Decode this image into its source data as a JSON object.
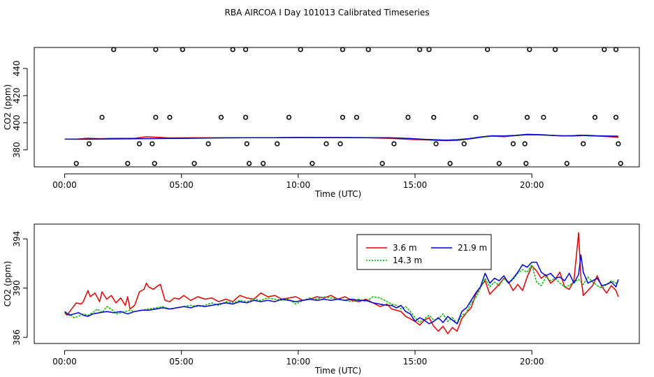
{
  "title": "RBA AIRCOA I  Day 101013  Calibrated Timeseries",
  "chart_data": [
    {
      "type": "line",
      "xlabel": "Time (UTC)",
      "ylabel": "CO2 (ppm)",
      "xlim": [
        -1.3,
        24.6
      ],
      "ylim": [
        367.5,
        455.5
      ],
      "x_ticks": [
        0,
        5,
        10,
        15,
        20
      ],
      "x_tick_labels": [
        "00:00",
        "05:00",
        "10:00",
        "15:00",
        "20:00"
      ],
      "y_ticks": [
        380,
        400,
        420,
        440
      ],
      "y_tick_labels": [
        "380",
        "400",
        "420",
        "440"
      ],
      "colors": {
        "3.6 m": "#e00000",
        "14.3 m": "#00bb00",
        "21.9 m": "#0000d0"
      },
      "series": [
        {
          "name": "3.6 m",
          "color": "#e00000",
          "x": [
            0,
            0.5,
            1,
            1.5,
            2,
            3,
            3.5,
            4,
            4.5,
            5,
            6,
            7,
            8,
            9,
            10,
            11,
            12,
            13,
            14,
            14.8,
            15.3,
            15.8,
            16.3,
            16.8,
            17.3,
            17.8,
            18.2,
            18.8,
            19.3,
            19.8,
            20.3,
            20.8,
            21.3,
            21.8,
            22.1,
            22.5,
            23,
            23.7
          ],
          "y": [
            388,
            388,
            388.6,
            388.3,
            388.5,
            388.6,
            389.7,
            389.3,
            388.8,
            388.9,
            388.9,
            388.9,
            389,
            389,
            389.2,
            389,
            389,
            388.9,
            388.5,
            387.7,
            387.5,
            387.1,
            386.8,
            387,
            388,
            389.2,
            390.2,
            389.8,
            390.5,
            391.1,
            391,
            390.7,
            390.3,
            390.5,
            390.9,
            390.3,
            390.1,
            389.3
          ]
        },
        {
          "name": "14.3 m",
          "color": "#00bb00",
          "x": [
            0,
            0.5,
            1,
            2,
            3,
            4,
            5,
            6,
            7,
            8,
            9,
            10,
            11,
            12,
            13,
            14,
            14.8,
            15.3,
            15.8,
            16.3,
            16.8,
            17.3,
            17.8,
            18.3,
            18.8,
            19.3,
            19.8,
            20.3,
            20.8,
            21.3,
            21.8,
            22.3,
            22.8,
            23.3,
            23.7
          ],
          "y": [
            388,
            387.9,
            388,
            388.1,
            388.2,
            388.4,
            388.5,
            388.7,
            388.9,
            389,
            389,
            389.1,
            389.1,
            389.1,
            389,
            388.9,
            388.3,
            387.8,
            387.4,
            387,
            387.2,
            388,
            389.2,
            390.1,
            390.1,
            390.5,
            391.3,
            391.1,
            390.7,
            390.3,
            390.2,
            390.5,
            390.3,
            390.2,
            390.1
          ]
        },
        {
          "name": "21.9 m",
          "color": "#0000d0",
          "x": [
            0,
            0.5,
            1,
            2,
            3,
            4,
            5,
            6,
            7,
            8,
            9,
            10,
            11,
            12,
            13,
            14,
            14.8,
            15.3,
            15.8,
            16.3,
            16.8,
            17.3,
            17.8,
            18.3,
            18.8,
            19.3,
            19.8,
            20.3,
            20.8,
            21.3,
            21.8,
            22.3,
            22.8,
            23.3,
            23.7
          ],
          "y": [
            388,
            387.9,
            387.9,
            388.1,
            388.2,
            388.4,
            388.5,
            388.7,
            388.9,
            389,
            389,
            389.1,
            389.1,
            389.1,
            389,
            388.9,
            388.4,
            387.9,
            387.5,
            387.2,
            387.5,
            388.3,
            389.5,
            390.4,
            390.3,
            390.7,
            391.5,
            391.3,
            390.8,
            390.4,
            390.4,
            390.8,
            390.4,
            390.2,
            390.1
          ]
        }
      ],
      "flag_points": {
        "x": [
          0.5,
          1.05,
          1.6,
          2.1,
          2.7,
          3.2,
          3.75,
          3.85,
          3.9,
          3.9,
          4.5,
          5.05,
          5.55,
          6.15,
          6.7,
          7.2,
          7.75,
          7.75,
          7.8,
          7.9,
          8.5,
          9.1,
          9.6,
          10.1,
          10.6,
          11.2,
          11.8,
          11.9,
          11.9,
          12.5,
          13.0,
          13.6,
          14.1,
          14.7,
          15.2,
          15.6,
          15.8,
          15.9,
          16.5,
          17.1,
          17.6,
          18.1,
          18.6,
          19.2,
          19.7,
          19.75,
          19.8,
          19.9,
          20.5,
          21.0,
          21.5,
          22.2,
          22.7,
          23.1,
          23.6,
          23.6,
          23.7,
          23.8
        ],
        "y": [
          370,
          384.5,
          404,
          454,
          370,
          384.5,
          384.5,
          370,
          404,
          454,
          404,
          454,
          370,
          384.5,
          404,
          454,
          404,
          454,
          384.5,
          370,
          370,
          384.5,
          404,
          454,
          370,
          384.5,
          384.5,
          404,
          454,
          404,
          454,
          370,
          384.5,
          404,
          454,
          454,
          404,
          384.5,
          370,
          384.5,
          404,
          454,
          370,
          384.5,
          384.5,
          370,
          404,
          454,
          404,
          454,
          370,
          384.5,
          404,
          454,
          454,
          404,
          384.5,
          370
        ]
      }
    },
    {
      "type": "line",
      "xlabel": "Time (UTC)",
      "ylabel": "CO2 (ppm)",
      "xlim": [
        -1.3,
        24.6
      ],
      "ylim": [
        385.5,
        395.2
      ],
      "x_ticks": [
        0,
        5,
        10,
        15,
        20
      ],
      "x_tick_labels": [
        "00:00",
        "05:00",
        "10:00",
        "15:00",
        "20:00"
      ],
      "y_ticks": [
        386,
        390,
        394
      ],
      "y_tick_labels": [
        "386",
        "390",
        "394"
      ],
      "legend": {
        "position": "top-center",
        "entries": [
          "3.6 m",
          "14.3 m",
          "21.9 m"
        ]
      },
      "series": [
        {
          "name": "3.6 m",
          "color": "#e00000",
          "x": [
            0,
            0.1,
            0.3,
            0.5,
            0.7,
            0.8,
            1.0,
            1.1,
            1.3,
            1.5,
            1.6,
            1.8,
            2.0,
            2.2,
            2.4,
            2.6,
            2.7,
            2.8,
            3.0,
            3.2,
            3.4,
            3.5,
            3.6,
            3.8,
            4.0,
            4.1,
            4.3,
            4.5,
            4.7,
            4.9,
            5.1,
            5.4,
            5.7,
            6.0,
            6.3,
            6.6,
            6.9,
            7.2,
            7.5,
            7.8,
            8.1,
            8.4,
            8.7,
            9.0,
            9.3,
            9.6,
            9.9,
            10.2,
            10.5,
            10.8,
            11.1,
            11.4,
            11.7,
            12.0,
            12.3,
            12.6,
            12.9,
            13.2,
            13.5,
            13.8,
            14.0,
            14.2,
            14.4,
            14.6,
            14.8,
            15.0,
            15.2,
            15.4,
            15.6,
            15.8,
            16.0,
            16.2,
            16.4,
            16.6,
            16.8,
            17.0,
            17.2,
            17.4,
            17.6,
            17.8,
            18.0,
            18.2,
            18.4,
            18.6,
            18.8,
            19.0,
            19.2,
            19.4,
            19.6,
            19.8,
            20.0,
            20.2,
            20.4,
            20.6,
            20.8,
            21.0,
            21.2,
            21.4,
            21.6,
            21.8,
            21.9,
            22.0,
            22.1,
            22.2,
            22.4,
            22.6,
            22.8,
            23.0,
            23.2,
            23.4,
            23.6,
            23.7
          ],
          "y": [
            388,
            387.8,
            388.3,
            388.8,
            388.7,
            388.9,
            389.8,
            389.3,
            389.6,
            388.9,
            389.7,
            389.1,
            389.4,
            388.8,
            389.2,
            388.6,
            389.3,
            388.3,
            388.6,
            389.7,
            389.9,
            390.4,
            390.1,
            389.9,
            390.2,
            390.3,
            389,
            388.9,
            389.2,
            389.1,
            389.4,
            389,
            389.3,
            389.1,
            389.2,
            388.9,
            389.1,
            388.9,
            389.4,
            389.2,
            389.1,
            389.6,
            389.3,
            389.4,
            389.1,
            389.2,
            389.3,
            389,
            389.1,
            389.3,
            389.2,
            389.4,
            389.1,
            389.3,
            389,
            388.9,
            389.1,
            388.8,
            388.5,
            388.7,
            388.3,
            388.2,
            388.1,
            387.7,
            387.5,
            387.3,
            387.0,
            387.4,
            387.6,
            386.9,
            386.5,
            386.9,
            386.3,
            386.8,
            386.5,
            387.5,
            388,
            388.4,
            389.5,
            390.1,
            390.6,
            389.5,
            389.9,
            390.3,
            390.8,
            390.5,
            389.8,
            390.3,
            389.8,
            390.9,
            391.8,
            391.4,
            390.8,
            391.1,
            390.4,
            390.7,
            391.3,
            390.1,
            389.9,
            390.6,
            392.5,
            394.5,
            390.9,
            389.4,
            389.8,
            390.2,
            391,
            390.1,
            389.6,
            390.2,
            389.8,
            389.3
          ]
        },
        {
          "name": "14.3 m",
          "color": "#00bb00",
          "x": [
            0,
            0.2,
            0.4,
            0.6,
            0.8,
            1.0,
            1.2,
            1.4,
            1.6,
            1.8,
            2.0,
            2.2,
            2.4,
            2.6,
            2.8,
            3.0,
            3.3,
            3.6,
            3.9,
            4.2,
            4.5,
            4.8,
            5.1,
            5.4,
            5.7,
            6.0,
            6.3,
            6.6,
            6.9,
            7.2,
            7.5,
            7.8,
            8.1,
            8.4,
            8.7,
            9.0,
            9.3,
            9.6,
            9.9,
            10.2,
            10.5,
            10.8,
            11.1,
            11.4,
            11.7,
            12.0,
            12.3,
            12.6,
            12.9,
            13.2,
            13.5,
            13.8,
            14.0,
            14.2,
            14.4,
            14.6,
            14.8,
            15.0,
            15.2,
            15.4,
            15.6,
            15.8,
            16.0,
            16.2,
            16.4,
            16.6,
            16.8,
            17.0,
            17.2,
            17.4,
            17.6,
            17.8,
            18.0,
            18.2,
            18.4,
            18.6,
            18.8,
            19.0,
            19.2,
            19.4,
            19.6,
            19.8,
            20.0,
            20.2,
            20.4,
            20.6,
            20.8,
            21.0,
            21.2,
            21.4,
            21.6,
            21.8,
            22.0,
            22.2,
            22.4,
            22.6,
            22.8,
            23.0,
            23.2,
            23.4,
            23.6,
            23.7
          ],
          "y": [
            388,
            387.9,
            387.6,
            387.7,
            387.9,
            387.8,
            388,
            388.3,
            388,
            388.5,
            388.3,
            387.9,
            388,
            388.1,
            388.2,
            388.1,
            388.2,
            388.3,
            388.4,
            388.5,
            388.3,
            388.4,
            388.5,
            388.6,
            388.5,
            388.6,
            388.8,
            388.6,
            388.9,
            388.8,
            389,
            388.9,
            389.1,
            389,
            389.2,
            389.1,
            389,
            389.1,
            388.7,
            389,
            389.2,
            389.1,
            389.3,
            389.2,
            389.1,
            389,
            388.9,
            389.1,
            388.9,
            389.3,
            389.2,
            388.9,
            388.7,
            388.6,
            388.3,
            388.5,
            388.1,
            387.6,
            387.2,
            387.5,
            387.8,
            387.4,
            387.5,
            387.9,
            387.3,
            387.6,
            387.1,
            387.8,
            388,
            388.8,
            389.2,
            390,
            390.8,
            390.1,
            390.5,
            390.2,
            390.8,
            390.4,
            390.7,
            391.2,
            391.5,
            391.3,
            391.9,
            390.5,
            390.2,
            390.9,
            390.6,
            390.8,
            390.4,
            390.1,
            390.2,
            390.5,
            390.7,
            390.3,
            390.9,
            390.5,
            390.2,
            390,
            390.3,
            390.6,
            390.4,
            390.6
          ]
        },
        {
          "name": "21.9 m",
          "color": "#0000d0",
          "x": [
            0,
            0.2,
            0.4,
            0.6,
            0.8,
            1.0,
            1.2,
            1.5,
            1.8,
            2.1,
            2.4,
            2.7,
            3.0,
            3.3,
            3.6,
            3.9,
            4.2,
            4.5,
            4.8,
            5.1,
            5.4,
            5.7,
            6.0,
            6.3,
            6.6,
            6.9,
            7.2,
            7.5,
            7.8,
            8.1,
            8.4,
            8.7,
            9.0,
            9.3,
            9.6,
            9.9,
            10.2,
            10.5,
            10.8,
            11.1,
            11.4,
            11.7,
            12.0,
            12.3,
            12.6,
            12.9,
            13.2,
            13.5,
            13.8,
            14.0,
            14.2,
            14.4,
            14.6,
            14.8,
            15.0,
            15.2,
            15.4,
            15.6,
            15.8,
            16.0,
            16.2,
            16.4,
            16.6,
            16.8,
            17.0,
            17.2,
            17.4,
            17.6,
            17.8,
            18.0,
            18.2,
            18.4,
            18.6,
            18.8,
            19.0,
            19.2,
            19.4,
            19.6,
            19.8,
            20.0,
            20.2,
            20.4,
            20.6,
            20.8,
            21.0,
            21.2,
            21.4,
            21.6,
            21.8,
            22.0,
            22.1,
            22.2,
            22.4,
            22.6,
            22.8,
            23.0,
            23.2,
            23.4,
            23.6,
            23.7
          ],
          "y": [
            388.1,
            387.8,
            387.9,
            388,
            387.8,
            387.7,
            387.9,
            388,
            388.1,
            388,
            388.1,
            387.9,
            388.1,
            388.2,
            388.2,
            388.3,
            388.4,
            388.3,
            388.4,
            388.5,
            388.4,
            388.6,
            388.5,
            388.6,
            388.7,
            388.8,
            388.7,
            388.9,
            388.8,
            389,
            388.9,
            389,
            388.9,
            389.1,
            389,
            388.9,
            389,
            389.1,
            389,
            389.1,
            389,
            389.1,
            389,
            389.1,
            389,
            389,
            388.8,
            388.7,
            388.6,
            388.6,
            388.4,
            388.6,
            388.1,
            387.9,
            387.3,
            387.6,
            387.4,
            387.1,
            387.3,
            387.6,
            387.2,
            387.7,
            387.4,
            387.1,
            388.1,
            388.4,
            389,
            389.6,
            390.1,
            391.2,
            390.4,
            390.8,
            390.6,
            391,
            390.4,
            390.8,
            391.3,
            391.9,
            391.7,
            392.1,
            392.1,
            391.3,
            391,
            391.2,
            390.8,
            390.9,
            390.6,
            391.2,
            390.4,
            391.1,
            392.7,
            391.3,
            390.4,
            390.6,
            390.8,
            390.2,
            390.3,
            390.5,
            390.1,
            390.7
          ]
        }
      ]
    }
  ]
}
